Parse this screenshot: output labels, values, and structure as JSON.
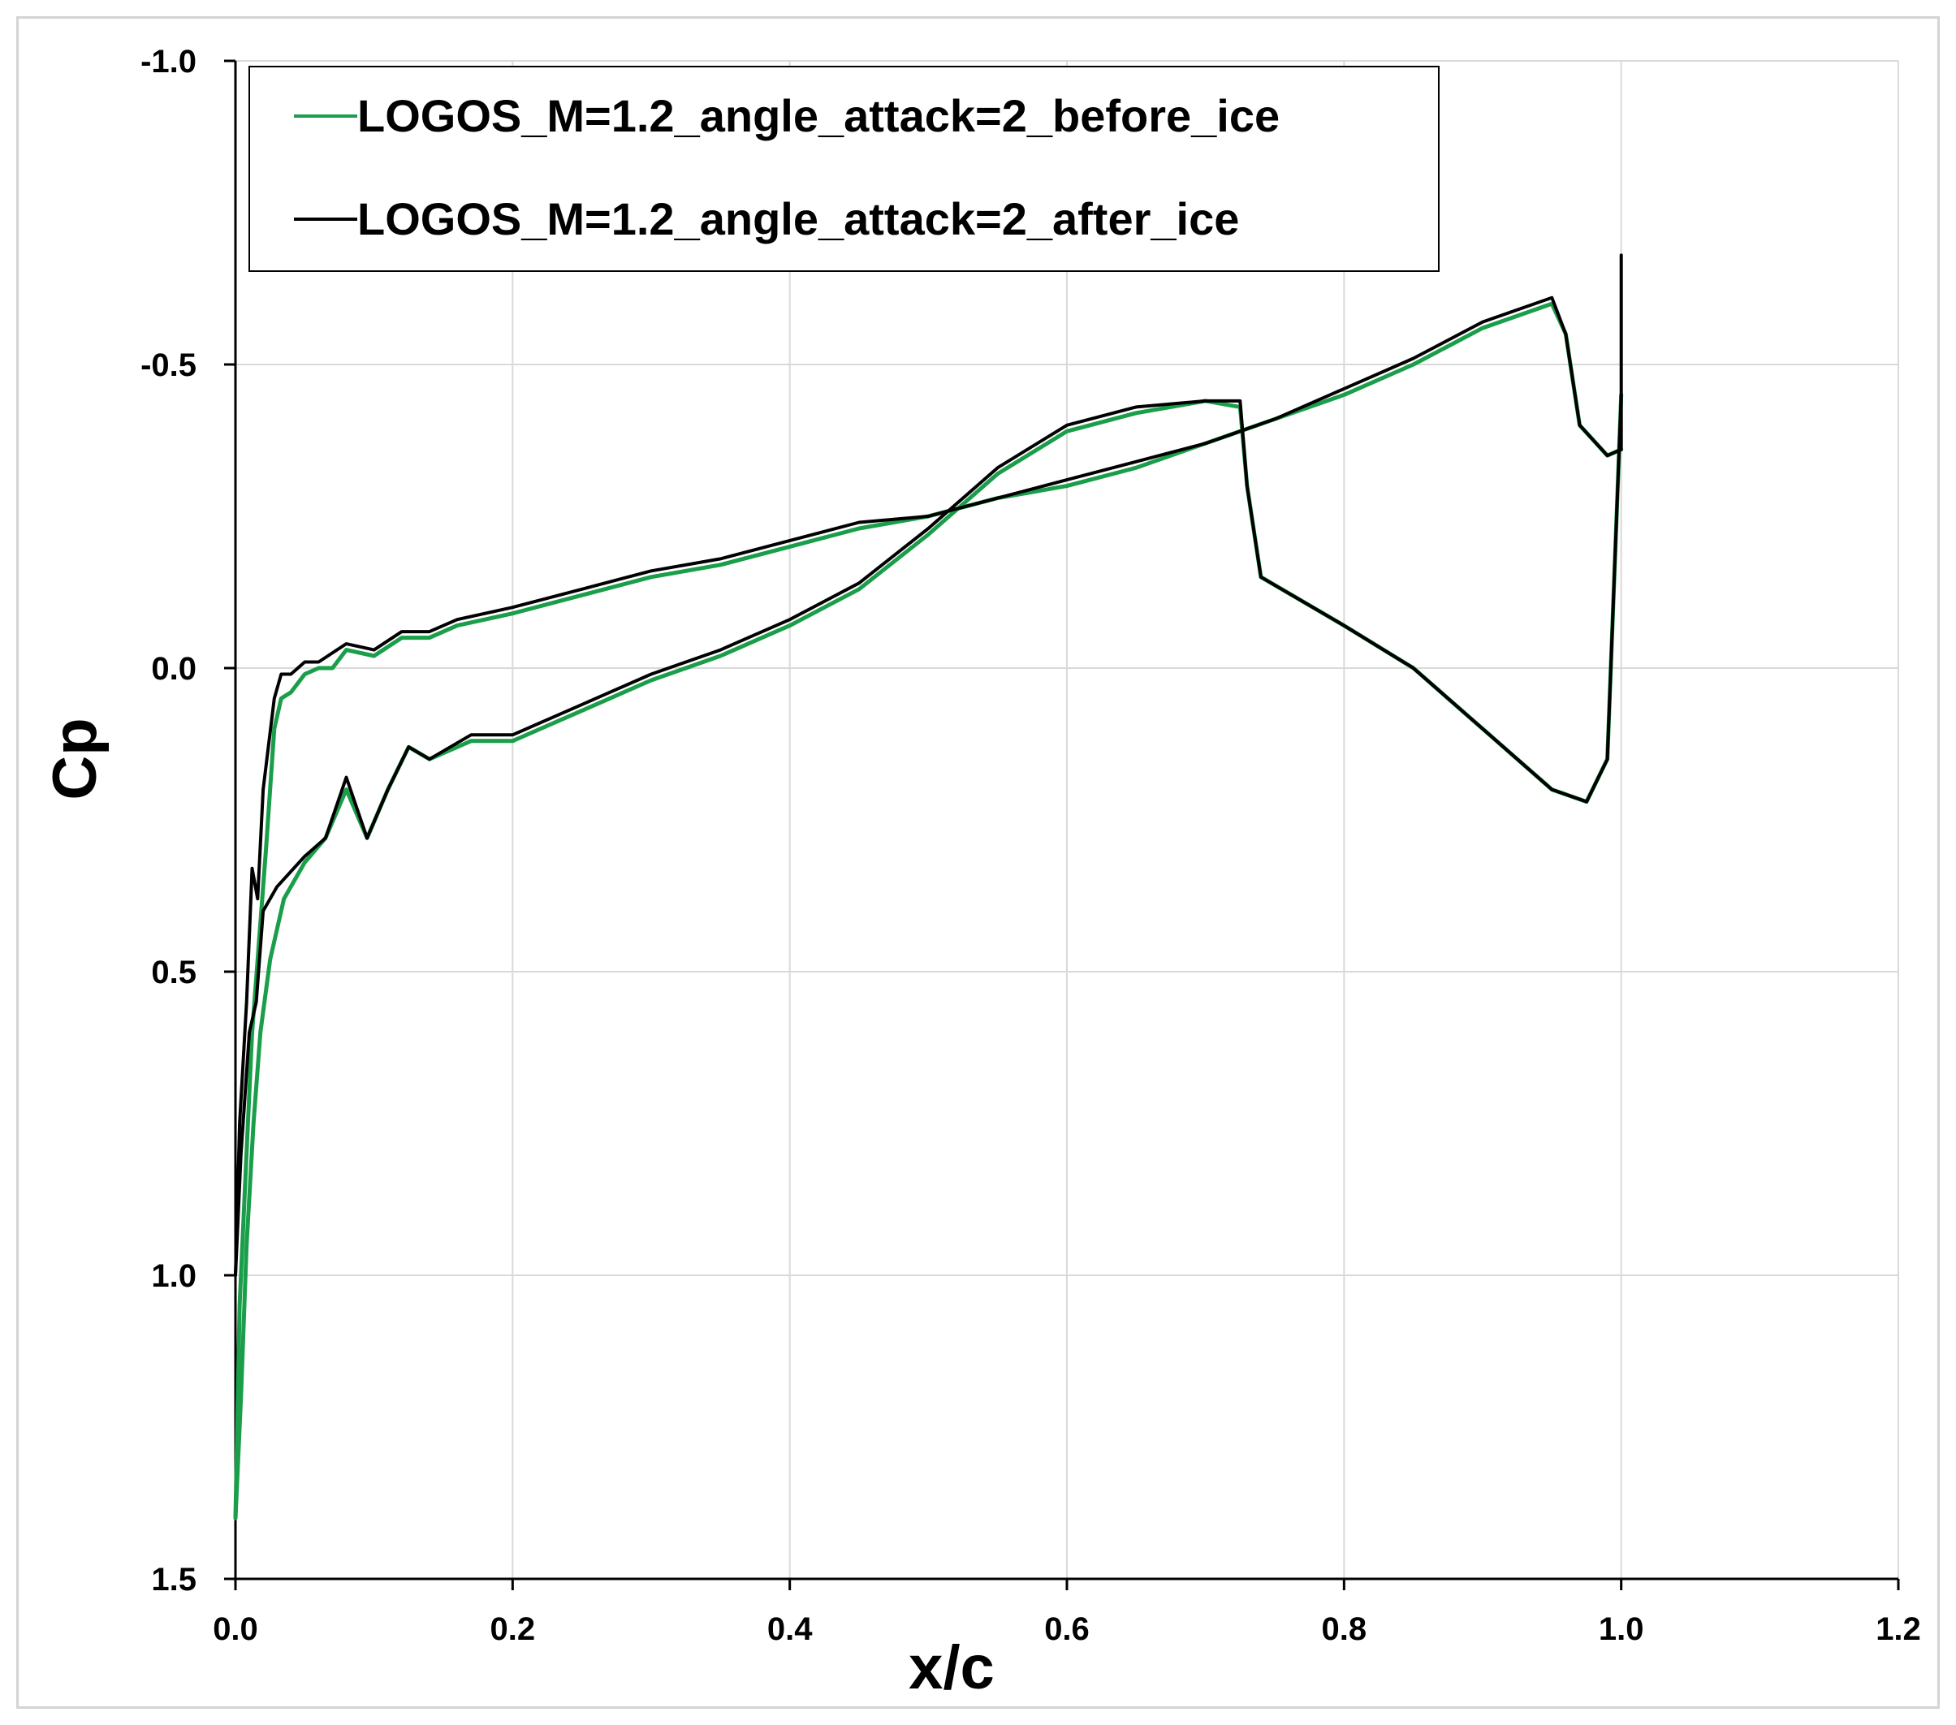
{
  "chart_data": {
    "type": "line",
    "title": "",
    "xlabel": "x/c",
    "ylabel": "Cp",
    "xlim": [
      0,
      1.2
    ],
    "ylim": [
      -1.0,
      1.5
    ],
    "y_inverted": true,
    "x_ticks": [
      "0.0",
      "0.2",
      "0.4",
      "0.6",
      "0.8",
      "1.0",
      "1.2"
    ],
    "y_ticks": [
      "-1.0",
      "-0.5",
      "0.0",
      "0.5",
      "1.0",
      "1.5"
    ],
    "grid": true,
    "legend": "top-left",
    "series": [
      {
        "name": "LOGOS_M=1.2_angle_attack=2_before_ice",
        "color": "#1a9e4a",
        "upper": [
          [
            0.0,
            1.4
          ],
          [
            0.003,
            1.05
          ],
          [
            0.007,
            0.85
          ],
          [
            0.012,
            0.6
          ],
          [
            0.017,
            0.45
          ],
          [
            0.022,
            0.3
          ],
          [
            0.028,
            0.1
          ],
          [
            0.033,
            0.05
          ],
          [
            0.04,
            0.04
          ],
          [
            0.05,
            0.01
          ],
          [
            0.06,
            0.0
          ],
          [
            0.07,
            0.0
          ],
          [
            0.08,
            -0.03
          ],
          [
            0.1,
            -0.02
          ],
          [
            0.12,
            -0.05
          ],
          [
            0.14,
            -0.05
          ],
          [
            0.16,
            -0.07
          ],
          [
            0.2,
            -0.09
          ],
          [
            0.25,
            -0.12
          ],
          [
            0.3,
            -0.15
          ],
          [
            0.35,
            -0.17
          ],
          [
            0.4,
            -0.2
          ],
          [
            0.45,
            -0.23
          ],
          [
            0.5,
            -0.25
          ],
          [
            0.55,
            -0.28
          ],
          [
            0.6,
            -0.3
          ],
          [
            0.65,
            -0.33
          ],
          [
            0.7,
            -0.37
          ],
          [
            0.75,
            -0.41
          ],
          [
            0.8,
            -0.45
          ],
          [
            0.85,
            -0.5
          ],
          [
            0.9,
            -0.56
          ],
          [
            0.95,
            -0.6
          ],
          [
            0.96,
            -0.55
          ],
          [
            0.97,
            -0.4
          ],
          [
            0.99,
            -0.35
          ],
          [
            1.0,
            -0.36
          ]
        ],
        "lower": [
          [
            0.0,
            1.4
          ],
          [
            0.004,
            1.2
          ],
          [
            0.008,
            0.95
          ],
          [
            0.013,
            0.75
          ],
          [
            0.018,
            0.6
          ],
          [
            0.025,
            0.48
          ],
          [
            0.035,
            0.38
          ],
          [
            0.05,
            0.32
          ],
          [
            0.065,
            0.28
          ],
          [
            0.08,
            0.2
          ],
          [
            0.095,
            0.28
          ],
          [
            0.11,
            0.2
          ],
          [
            0.125,
            0.13
          ],
          [
            0.14,
            0.15
          ],
          [
            0.17,
            0.12
          ],
          [
            0.2,
            0.12
          ],
          [
            0.25,
            0.07
          ],
          [
            0.3,
            0.02
          ],
          [
            0.35,
            -0.02
          ],
          [
            0.4,
            -0.07
          ],
          [
            0.45,
            -0.13
          ],
          [
            0.5,
            -0.22
          ],
          [
            0.55,
            -0.32
          ],
          [
            0.6,
            -0.39
          ],
          [
            0.65,
            -0.42
          ],
          [
            0.7,
            -0.44
          ],
          [
            0.725,
            -0.43
          ],
          [
            0.73,
            -0.3
          ],
          [
            0.74,
            -0.15
          ],
          [
            0.8,
            -0.07
          ],
          [
            0.85,
            0.0
          ],
          [
            0.9,
            0.1
          ],
          [
            0.95,
            0.2
          ],
          [
            0.975,
            0.22
          ],
          [
            0.99,
            0.15
          ],
          [
            1.0,
            -0.45
          ]
        ]
      },
      {
        "name": "LOGOS_M=1.2_angle_attack=2_after_ice",
        "color": "#000000",
        "upper": [
          [
            0.0,
            1.0
          ],
          [
            0.003,
            0.75
          ],
          [
            0.008,
            0.55
          ],
          [
            0.012,
            0.33
          ],
          [
            0.016,
            0.38
          ],
          [
            0.02,
            0.2
          ],
          [
            0.028,
            0.05
          ],
          [
            0.033,
            0.01
          ],
          [
            0.04,
            0.01
          ],
          [
            0.05,
            -0.01
          ],
          [
            0.06,
            -0.01
          ],
          [
            0.08,
            -0.04
          ],
          [
            0.1,
            -0.03
          ],
          [
            0.12,
            -0.06
          ],
          [
            0.14,
            -0.06
          ],
          [
            0.16,
            -0.08
          ],
          [
            0.2,
            -0.1
          ],
          [
            0.25,
            -0.13
          ],
          [
            0.3,
            -0.16
          ],
          [
            0.35,
            -0.18
          ],
          [
            0.4,
            -0.21
          ],
          [
            0.45,
            -0.24
          ],
          [
            0.5,
            -0.25
          ],
          [
            0.55,
            -0.28
          ],
          [
            0.6,
            -0.31
          ],
          [
            0.65,
            -0.34
          ],
          [
            0.7,
            -0.37
          ],
          [
            0.75,
            -0.41
          ],
          [
            0.8,
            -0.46
          ],
          [
            0.85,
            -0.51
          ],
          [
            0.9,
            -0.57
          ],
          [
            0.95,
            -0.61
          ],
          [
            0.96,
            -0.55
          ],
          [
            0.97,
            -0.4
          ],
          [
            0.99,
            -0.35
          ],
          [
            1.0,
            -0.36
          ],
          [
            1.0,
            -0.68
          ]
        ],
        "lower": [
          [
            0.0,
            1.0
          ],
          [
            0.004,
            0.8
          ],
          [
            0.01,
            0.6
          ],
          [
            0.015,
            0.55
          ],
          [
            0.02,
            0.4
          ],
          [
            0.03,
            0.36
          ],
          [
            0.05,
            0.31
          ],
          [
            0.065,
            0.28
          ],
          [
            0.08,
            0.18
          ],
          [
            0.095,
            0.28
          ],
          [
            0.11,
            0.2
          ],
          [
            0.125,
            0.13
          ],
          [
            0.14,
            0.15
          ],
          [
            0.17,
            0.11
          ],
          [
            0.2,
            0.11
          ],
          [
            0.25,
            0.06
          ],
          [
            0.3,
            0.01
          ],
          [
            0.35,
            -0.03
          ],
          [
            0.4,
            -0.08
          ],
          [
            0.45,
            -0.14
          ],
          [
            0.5,
            -0.23
          ],
          [
            0.55,
            -0.33
          ],
          [
            0.6,
            -0.4
          ],
          [
            0.65,
            -0.43
          ],
          [
            0.7,
            -0.44
          ],
          [
            0.725,
            -0.44
          ],
          [
            0.73,
            -0.3
          ],
          [
            0.74,
            -0.15
          ],
          [
            0.8,
            -0.07
          ],
          [
            0.85,
            0.0
          ],
          [
            0.9,
            0.1
          ],
          [
            0.95,
            0.2
          ],
          [
            0.975,
            0.22
          ],
          [
            0.99,
            0.15
          ],
          [
            1.0,
            -0.45
          ]
        ]
      }
    ]
  }
}
